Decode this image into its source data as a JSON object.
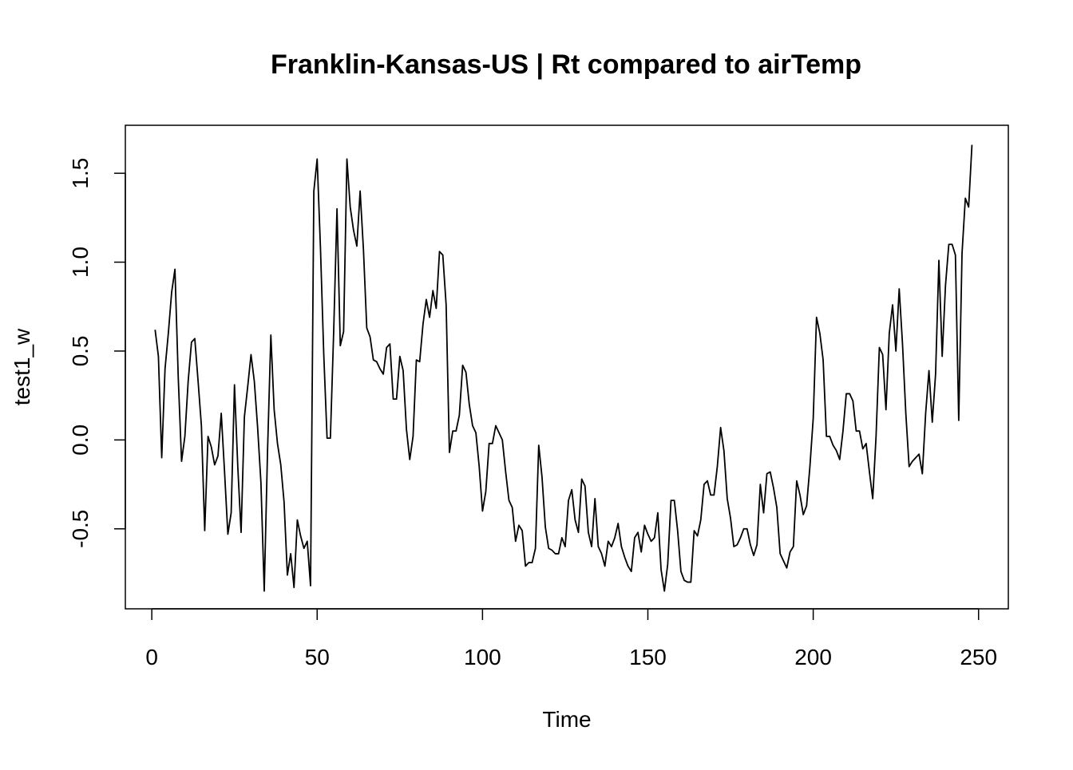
{
  "chart_data": {
    "type": "line",
    "title": "Franklin-Kansas-US | Rt compared to airTemp",
    "xlabel": "Time",
    "ylabel": "test1_w",
    "xlim": [
      -8,
      259
    ],
    "ylim": [
      -0.95,
      1.77
    ],
    "xticks": [
      0,
      50,
      100,
      150,
      200,
      250
    ],
    "xtick_labels": [
      "0",
      "50",
      "100",
      "150",
      "200",
      "250"
    ],
    "yticks": [
      -0.5,
      0.0,
      0.5,
      1.0,
      1.5
    ],
    "ytick_labels": [
      "-0.5",
      "0.0",
      "0.5",
      "1.0",
      "1.5"
    ],
    "grid": false,
    "legend": "none",
    "line_color": "#000000",
    "series": [
      {
        "x": [
          1,
          2,
          3,
          4,
          5,
          6,
          7,
          8,
          9,
          10,
          11,
          12,
          13,
          14,
          15,
          16,
          17,
          18,
          19,
          20,
          21,
          22,
          23,
          24,
          25,
          26,
          27,
          28,
          29,
          30,
          31,
          32,
          33,
          34,
          35,
          36,
          37,
          38,
          39,
          40,
          41,
          42,
          43,
          44,
          45,
          46,
          47,
          48,
          49,
          50,
          51,
          52,
          53,
          54,
          55,
          56,
          57,
          58,
          59,
          60,
          61,
          62,
          63,
          64,
          65,
          66,
          67,
          68,
          69,
          70,
          71,
          72,
          73,
          74,
          75,
          76,
          77,
          78,
          79,
          80,
          81,
          82,
          83,
          84,
          85,
          86,
          87,
          88,
          89,
          90,
          91,
          92,
          93,
          94,
          95,
          96,
          97,
          98,
          99,
          100,
          101,
          102,
          103,
          104,
          105,
          106,
          107,
          108,
          109,
          110,
          111,
          112,
          113,
          114,
          115,
          116,
          117,
          118,
          119,
          120,
          121,
          122,
          123,
          124,
          125,
          126,
          127,
          128,
          129,
          130,
          131,
          132,
          133,
          134,
          135,
          136,
          137,
          138,
          139,
          140,
          141,
          142,
          143,
          144,
          145,
          146,
          147,
          148,
          149,
          150,
          151,
          152,
          153,
          154,
          155,
          156,
          157,
          158,
          159,
          160,
          161,
          162,
          163,
          164,
          165,
          166,
          167,
          168,
          169,
          170,
          171,
          172,
          173,
          174,
          175,
          176,
          177,
          178,
          179,
          180,
          181,
          182,
          183,
          184,
          185,
          186,
          187,
          188,
          189,
          190,
          191,
          192,
          193,
          194,
          195,
          196,
          197,
          198,
          199,
          200,
          201,
          202,
          203,
          204,
          205,
          206,
          207,
          208,
          209,
          210,
          211,
          212,
          213,
          214,
          215,
          216,
          217,
          218,
          219,
          220,
          221,
          222,
          223,
          224,
          225,
          226,
          227,
          228,
          229,
          230,
          231,
          232,
          233,
          234,
          235,
          236,
          237,
          238,
          239,
          240,
          241,
          242,
          243,
          244,
          245,
          246,
          247,
          248
        ],
        "values": [
          0.62,
          0.47,
          -0.1,
          0.4,
          0.6,
          0.83,
          0.96,
          0.35,
          -0.12,
          0.02,
          0.33,
          0.55,
          0.57,
          0.33,
          0.08,
          -0.51,
          0.02,
          -0.04,
          -0.14,
          -0.09,
          0.15,
          -0.18,
          -0.53,
          -0.41,
          0.31,
          -0.15,
          -0.52,
          0.13,
          0.3,
          0.48,
          0.33,
          0.07,
          -0.24,
          -0.85,
          -0.06,
          0.59,
          0.17,
          -0.02,
          -0.14,
          -0.35,
          -0.76,
          -0.64,
          -0.83,
          -0.45,
          -0.54,
          -0.61,
          -0.57,
          -0.82,
          1.4,
          1.58,
          1.08,
          0.48,
          0.01,
          0.01,
          0.61,
          1.3,
          0.53,
          0.61,
          1.58,
          1.31,
          1.18,
          1.09,
          1.4,
          1.07,
          0.63,
          0.58,
          0.45,
          0.44,
          0.4,
          0.37,
          0.52,
          0.54,
          0.23,
          0.23,
          0.47,
          0.39,
          0.06,
          -0.11,
          0.02,
          0.45,
          0.44,
          0.65,
          0.79,
          0.69,
          0.84,
          0.74,
          1.06,
          1.04,
          0.76,
          -0.07,
          0.05,
          0.05,
          0.14,
          0.42,
          0.38,
          0.2,
          0.08,
          0.04,
          -0.15,
          -0.4,
          -0.29,
          -0.02,
          -0.02,
          0.08,
          0.04,
          0.0,
          -0.18,
          -0.34,
          -0.38,
          -0.57,
          -0.48,
          -0.51,
          -0.71,
          -0.69,
          -0.69,
          -0.61,
          -0.03,
          -0.21,
          -0.49,
          -0.61,
          -0.62,
          -0.64,
          -0.64,
          -0.55,
          -0.6,
          -0.34,
          -0.28,
          -0.45,
          -0.52,
          -0.22,
          -0.26,
          -0.52,
          -0.6,
          -0.33,
          -0.6,
          -0.64,
          -0.71,
          -0.57,
          -0.6,
          -0.55,
          -0.47,
          -0.6,
          -0.66,
          -0.71,
          -0.74,
          -0.55,
          -0.52,
          -0.63,
          -0.48,
          -0.53,
          -0.57,
          -0.55,
          -0.41,
          -0.73,
          -0.85,
          -0.7,
          -0.34,
          -0.34,
          -0.51,
          -0.74,
          -0.79,
          -0.8,
          -0.8,
          -0.51,
          -0.54,
          -0.45,
          -0.25,
          -0.23,
          -0.31,
          -0.31,
          -0.15,
          0.07,
          -0.06,
          -0.33,
          -0.44,
          -0.6,
          -0.59,
          -0.55,
          -0.5,
          -0.5,
          -0.59,
          -0.65,
          -0.59,
          -0.25,
          -0.41,
          -0.19,
          -0.18,
          -0.27,
          -0.38,
          -0.64,
          -0.68,
          -0.72,
          -0.63,
          -0.6,
          -0.23,
          -0.31,
          -0.42,
          -0.37,
          -0.15,
          0.12,
          0.69,
          0.6,
          0.45,
          0.02,
          0.02,
          -0.03,
          -0.06,
          -0.11,
          0.05,
          0.26,
          0.26,
          0.22,
          0.05,
          0.05,
          -0.05,
          -0.02,
          -0.18,
          -0.33,
          0.02,
          0.52,
          0.48,
          0.17,
          0.6,
          0.76,
          0.5,
          0.85,
          0.54,
          0.15,
          -0.15,
          -0.12,
          -0.1,
          -0.08,
          -0.19,
          0.15,
          0.39,
          0.1,
          0.37,
          1.01,
          0.47,
          0.87,
          1.1,
          1.1,
          1.04,
          0.11,
          1.05,
          1.36,
          1.31,
          1.66
        ]
      }
    ]
  }
}
